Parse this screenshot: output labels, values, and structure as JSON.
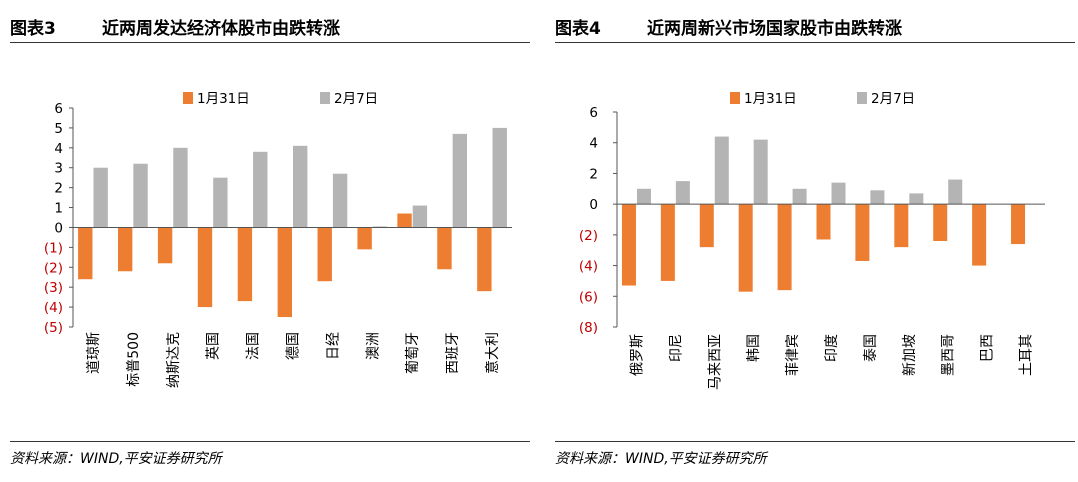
{
  "colors": {
    "series1": "#ed7d31",
    "series2": "#b4b4b4",
    "negative_tick": "#c00000",
    "axis": "#555555"
  },
  "left": {
    "fig_num": "图表3",
    "fig_title": "近两周发达经济体股市由跌转涨",
    "source": "资料来源：WIND,平安证券研究所"
  },
  "right": {
    "fig_num": "图表4",
    "fig_title": "近两周新兴市场国家股市由跌转涨",
    "source": "资料来源：WIND,平安证券研究所"
  },
  "chart_data": [
    {
      "type": "bar",
      "categories": [
        "道琼斯",
        "标普500",
        "纳斯达克",
        "英国",
        "法国",
        "德国",
        "日经",
        "澳洲",
        "葡萄牙",
        "西班牙",
        "意大利"
      ],
      "series": [
        {
          "name": "1月31日",
          "values": [
            -2.6,
            -2.2,
            -1.8,
            -4.0,
            -3.7,
            -4.5,
            -2.7,
            -1.1,
            0.7,
            -2.1,
            -3.2
          ]
        },
        {
          "name": "2月7日",
          "values": [
            3.0,
            3.2,
            4.0,
            2.5,
            3.8,
            4.1,
            2.7,
            0.05,
            1.1,
            4.7,
            5.0
          ]
        }
      ],
      "yticks": [
        "6",
        "5",
        "4",
        "3",
        "2",
        "1",
        "0",
        "(1)",
        "(2)",
        "(3)",
        "(4)",
        "(5)"
      ],
      "ylim": [
        -5,
        6
      ],
      "legend_position": "top",
      "grid": false
    },
    {
      "type": "bar",
      "categories": [
        "俄罗斯",
        "印尼",
        "马来西亚",
        "韩国",
        "菲律宾",
        "印度",
        "泰国",
        "新加坡",
        "墨西哥",
        "巴西",
        "土耳其"
      ],
      "series": [
        {
          "name": "1月31日",
          "values": [
            -5.3,
            -5.0,
            -2.8,
            -5.7,
            -5.6,
            -2.3,
            -3.7,
            -2.8,
            -2.4,
            -4.0,
            -2.6
          ]
        },
        {
          "name": "2月7日",
          "values": [
            1.0,
            1.5,
            4.4,
            4.2,
            1.0,
            1.4,
            0.9,
            0.7,
            1.6,
            0,
            0
          ]
        }
      ],
      "yticks": [
        "6",
        "4",
        "2",
        "0",
        "(2)",
        "(4)",
        "(6)",
        "(8)"
      ],
      "ylim": [
        -8,
        6
      ],
      "legend_position": "top",
      "grid": false
    }
  ]
}
